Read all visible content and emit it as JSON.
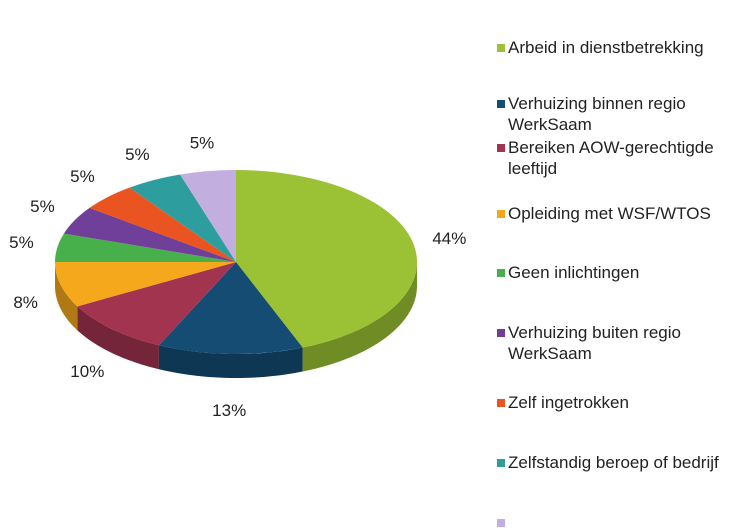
{
  "chart_data": {
    "type": "pie",
    "categories": [
      "Arbeid in dienstbetrekking",
      "Verhuizing binnen regio WerkSaam",
      "Bereiken AOW-gerechtigde leeftijd",
      "Opleiding met WSF/WTOS",
      "Geen inlichtingen",
      "Verhuizing buiten regio WerkSaam",
      "Zelf ingetrokken",
      "Zelfstandig beroep of bedrijf",
      null
    ],
    "values": [
      44,
      13,
      10,
      8,
      5,
      5,
      5,
      5,
      5
    ],
    "value_labels": [
      "44%",
      "13%",
      "10%",
      "8%",
      "5%",
      "5%",
      "5%",
      "5%",
      "5%"
    ],
    "colors": [
      "#9bc234",
      "#144c73",
      "#a3344f",
      "#f6a81c",
      "#47b04b",
      "#6f3f9a",
      "#ea5420",
      "#2e9d9e",
      "#c3aee0"
    ],
    "legend": "right",
    "3d": true
  }
}
